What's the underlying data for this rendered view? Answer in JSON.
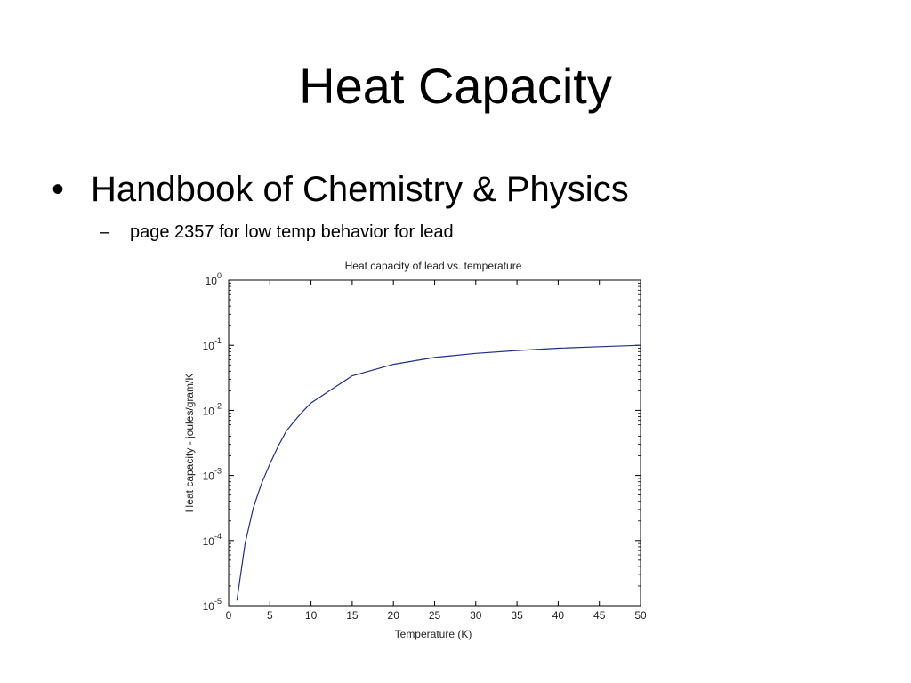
{
  "slide": {
    "title": "Heat Capacity",
    "bullet": "Handbook of Chemistry & Physics",
    "bullet_marker": "•",
    "sub_bullet": "page 2357 for low temp behavior for lead",
    "sub_bullet_marker": "–"
  },
  "chart_data": {
    "type": "line",
    "title": "Heat capacity of lead vs. temperature",
    "xlabel": "Temperature (K)",
    "ylabel": "Heat capacity - joules/gram/K",
    "xlim": [
      0,
      50
    ],
    "ylim": [
      1e-05,
      1
    ],
    "yscale": "log",
    "grid": false,
    "x_ticks": [
      "0",
      "5",
      "10",
      "15",
      "20",
      "25",
      "30",
      "35",
      "40",
      "45",
      "50"
    ],
    "y_ticks": [
      {
        "base": "10",
        "exp": "0"
      },
      {
        "base": "10",
        "exp": "-1"
      },
      {
        "base": "10",
        "exp": "-2"
      },
      {
        "base": "10",
        "exp": "-3"
      },
      {
        "base": "10",
        "exp": "-4"
      },
      {
        "base": "10",
        "exp": "-5"
      }
    ],
    "series": [
      {
        "color": "#1f2f8f",
        "x": [
          1,
          2,
          3,
          4,
          5,
          6,
          7,
          8,
          9,
          10,
          15,
          20,
          25,
          30,
          35,
          40,
          45,
          50
        ],
        "y": [
          1.2e-05,
          9e-05,
          0.00032,
          0.00075,
          0.0015,
          0.0028,
          0.0048,
          0.0069,
          0.0096,
          0.013,
          0.034,
          0.051,
          0.065,
          0.075,
          0.083,
          0.09,
          0.095,
          0.1
        ]
      }
    ]
  }
}
